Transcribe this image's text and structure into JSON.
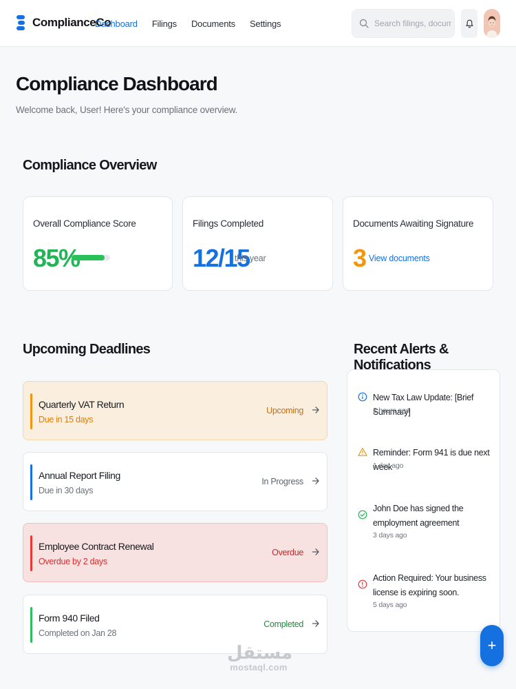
{
  "header": {
    "brand": "ComplianceCo",
    "nav": [
      {
        "label": "Dashboard",
        "active": true
      },
      {
        "label": "Filings",
        "active": false
      },
      {
        "label": "Documents",
        "active": false
      },
      {
        "label": "Settings",
        "active": false
      }
    ],
    "search_placeholder": "Search filings, documents...",
    "icons": {
      "search": "search-icon",
      "bell": "bell-icon",
      "avatar": "user-avatar"
    }
  },
  "page": {
    "title": "Compliance Dashboard",
    "subtitle": "Welcome back, User! Here's your compliance overview."
  },
  "overview": {
    "title": "Compliance Overview",
    "score": {
      "label": "Overall Compliance Score",
      "value": "85%",
      "progress_fraction": 0.85,
      "color": "#22b455"
    },
    "filings": {
      "label": "Filings Completed",
      "value": "12/15",
      "suffix": "this year",
      "color": "#1570e0"
    },
    "documents": {
      "label": "Documents Awaiting Signature",
      "value": "3",
      "link": "View documents",
      "color": "#f0960f"
    }
  },
  "deadlines": {
    "title": "Upcoming Deadlines",
    "items": [
      {
        "title": "Quarterly VAT Return",
        "sub": "Due in 15 days",
        "status": "Upcoming",
        "accent": "#f0960f",
        "bg": "#faefdf",
        "border": "#f2d7ad",
        "sub_color": "#dd7c0b",
        "status_color": "#c86d0a"
      },
      {
        "title": "Annual Report Filing",
        "sub": "Due in 30 days",
        "status": "In Progress",
        "accent": "#1570e0",
        "bg": "#ffffff",
        "border": "#e4e6ea",
        "sub_color": "#6b7079",
        "status_color": "#5d626b"
      },
      {
        "title": "Employee Contract Renewal",
        "sub": "Overdue by 2 days",
        "status": "Overdue",
        "accent": "#e53935",
        "bg": "#f7e1e1",
        "border": "#efc0c0",
        "sub_color": "#d32f2f",
        "status_color": "#c62828"
      },
      {
        "title": "Form 940 Filed",
        "sub": "Completed on Jan 28",
        "status": "Completed",
        "accent": "#2bc15a",
        "bg": "#ffffff",
        "border": "#e4e6ea",
        "sub_color": "#6b7079",
        "status_color": "#1d8a3c"
      }
    ]
  },
  "alerts": {
    "title": "Recent Alerts & Notifications",
    "items": [
      {
        "icon": "info-icon",
        "text": "New Tax Law Update: [Brief Summary]",
        "time": "2 hours ago",
        "color": "#1570e0"
      },
      {
        "icon": "warning-icon",
        "text": "Reminder: Form 941 is due next week",
        "time": "1 day ago",
        "color": "#f0960f"
      },
      {
        "icon": "check-circle-icon",
        "text": "John Doe has signed the employment agreement",
        "time": "3 days ago",
        "color": "#22b455"
      },
      {
        "icon": "alert-circle-icon",
        "text": "Action Required: Your business license is expiring soon.",
        "time": "5 days ago",
        "color": "#e53935"
      }
    ]
  },
  "fab": {
    "label": "+"
  },
  "watermark": {
    "arabic": "مستقل",
    "latin": "mostaql.com"
  }
}
